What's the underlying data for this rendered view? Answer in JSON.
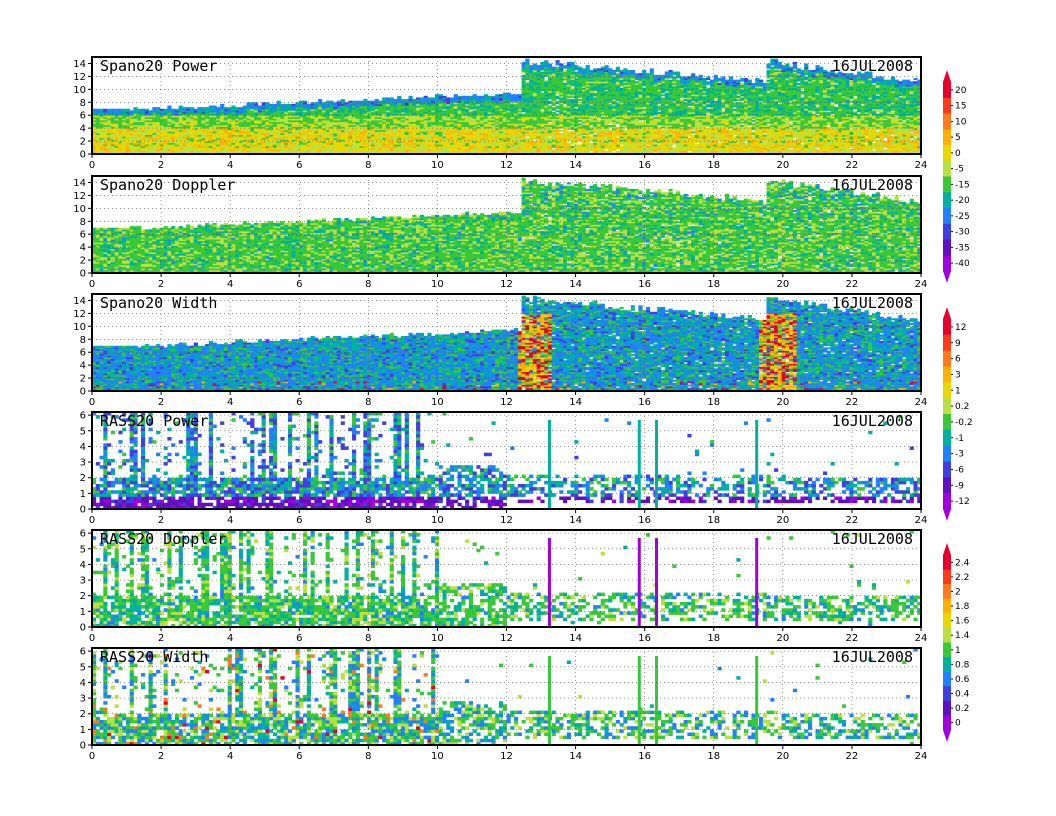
{
  "chart_data": [
    {
      "type": "heatmap",
      "title": "Spano20 Power",
      "date": "16JUL2008",
      "xlim": [
        0,
        24
      ],
      "ylim": [
        0,
        15
      ],
      "x_ticks": [
        "0",
        "2",
        "4",
        "6",
        "8",
        "10",
        "12",
        "14",
        "16",
        "18",
        "20",
        "22",
        "24"
      ],
      "y_ticks": [
        "0",
        "2",
        "4",
        "6",
        "8",
        "10",
        "12",
        "14"
      ],
      "colorbar": [
        "20",
        "15",
        "10",
        "5",
        "0",
        "-5",
        "-15",
        "-20",
        "-25",
        "-30",
        "-35",
        "-40"
      ],
      "colors": [
        "#e8002d",
        "#ff3a1a",
        "#ff7a1a",
        "#ffb000",
        "#e8d800",
        "#b8e040",
        "#38c838",
        "#00b0a0",
        "#2080ff",
        "#4040e0",
        "#6010c0",
        "#a000e0"
      ]
    },
    {
      "type": "heatmap",
      "title": "Spano20 Doppler",
      "date": "16JUL2008",
      "xlim": [
        0,
        24
      ],
      "ylim": [
        0,
        15
      ],
      "x_ticks": [
        "0",
        "2",
        "4",
        "6",
        "8",
        "10",
        "12",
        "14",
        "16",
        "18",
        "20",
        "22",
        "24"
      ],
      "y_ticks": [
        "0",
        "2",
        "4",
        "6",
        "8",
        "10",
        "12",
        "14"
      ]
    },
    {
      "type": "heatmap",
      "title": "Spano20 Width",
      "date": "16JUL2008",
      "xlim": [
        0,
        24
      ],
      "ylim": [
        0,
        15
      ],
      "x_ticks": [
        "0",
        "2",
        "4",
        "6",
        "8",
        "10",
        "12",
        "14",
        "16",
        "18",
        "20",
        "22",
        "24"
      ],
      "y_ticks": [
        "0",
        "2",
        "4",
        "6",
        "8",
        "10",
        "12",
        "14"
      ],
      "colorbar": [
        "12",
        "9",
        "6",
        "3",
        "1",
        "0.2",
        "-0.2",
        "-1",
        "-3",
        "-6",
        "-9",
        "-12"
      ],
      "colors": [
        "#e8002d",
        "#ff3a1a",
        "#ff7a1a",
        "#ffb000",
        "#e8d800",
        "#b8e040",
        "#38c838",
        "#00b0a0",
        "#2080ff",
        "#4040e0",
        "#6010c0",
        "#a000e0"
      ]
    },
    {
      "type": "heatmap",
      "title": "RASS20 Power",
      "date": "16JUL2008",
      "xlim": [
        0,
        24
      ],
      "ylim": [
        0,
        6.2
      ],
      "x_ticks": [
        "0",
        "2",
        "4",
        "6",
        "8",
        "10",
        "12",
        "14",
        "16",
        "18",
        "20",
        "22",
        "24"
      ],
      "y_ticks": [
        "0",
        "1",
        "2",
        "3",
        "4",
        "5",
        "6"
      ]
    },
    {
      "type": "heatmap",
      "title": "RASS20 Doppler",
      "date": "16JUL2008",
      "xlim": [
        0,
        24
      ],
      "ylim": [
        0,
        6.2
      ],
      "x_ticks": [
        "0",
        "2",
        "4",
        "6",
        "8",
        "10",
        "12",
        "14",
        "16",
        "18",
        "20",
        "22",
        "24"
      ],
      "y_ticks": [
        "0",
        "1",
        "2",
        "3",
        "4",
        "5",
        "6"
      ],
      "colorbar": [
        "2.4",
        "2.2",
        "2",
        "1.8",
        "1.6",
        "1.4",
        "1",
        "0.8",
        "0.6",
        "0.4",
        "0.2",
        "0"
      ],
      "colors": [
        "#e8002d",
        "#ff3a1a",
        "#ff7a1a",
        "#ffb000",
        "#e8d800",
        "#b8e040",
        "#38c838",
        "#00b0a0",
        "#2080ff",
        "#4040e0",
        "#6010c0",
        "#a000e0"
      ]
    },
    {
      "type": "heatmap",
      "title": "RASS20 Width",
      "date": "16JUL2008",
      "xlim": [
        0,
        24
      ],
      "ylim": [
        0,
        6.2
      ],
      "x_ticks": [
        "0",
        "2",
        "4",
        "6",
        "8",
        "10",
        "12",
        "14",
        "16",
        "18",
        "20",
        "22",
        "24"
      ],
      "y_ticks": [
        "0",
        "1",
        "2",
        "3",
        "4",
        "5",
        "6"
      ]
    }
  ]
}
